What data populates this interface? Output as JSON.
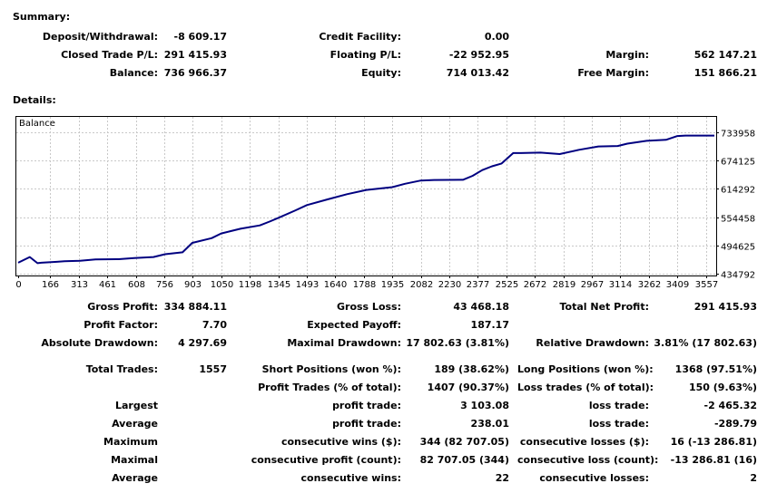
{
  "summary": {
    "heading": "Summary:",
    "deposit_withdrawal_label": "Deposit/Withdrawal:",
    "deposit_withdrawal_value": "-8 609.17",
    "credit_facility_label": "Credit Facility:",
    "credit_facility_value": "0.00",
    "closed_trade_label": "Closed Trade P/L:",
    "closed_trade_value": "291 415.93",
    "floating_label": "Floating P/L:",
    "floating_value": "-22 952.95",
    "margin_label": "Margin:",
    "margin_value": "562 147.21",
    "balance_label": "Balance:",
    "balance_value": "736 966.37",
    "equity_label": "Equity:",
    "equity_value": "714 013.42",
    "free_margin_label": "Free Margin:",
    "free_margin_value": "151 866.21"
  },
  "details": {
    "heading": "Details:"
  },
  "chart_data": {
    "type": "line",
    "title": "Balance",
    "xlabel": "",
    "ylabel": "",
    "x_ticks": [
      "0",
      "166",
      "313",
      "461",
      "608",
      "756",
      "903",
      "1050",
      "1198",
      "1345",
      "1493",
      "1640",
      "1788",
      "1935",
      "2082",
      "2230",
      "2377",
      "2525",
      "2672",
      "2819",
      "2967",
      "3114",
      "3262",
      "3409",
      "3557"
    ],
    "y_ticks": [
      "733958",
      "674125",
      "614292",
      "554458",
      "494625",
      "434792"
    ],
    "xlim": [
      0,
      3600
    ],
    "ylim": [
      434792,
      733958
    ],
    "grid": true,
    "color": "#000080",
    "series": [
      {
        "name": "",
        "x": [
          0,
          60,
          100,
          120,
          200,
          240,
          320,
          400,
          520,
          600,
          700,
          760,
          850,
          900,
          1000,
          1050,
          1150,
          1250,
          1300,
          1345,
          1430,
          1493,
          1600,
          1700,
          1800,
          1935,
          2000,
          2082,
          2150,
          2300,
          2350,
          2400,
          2450,
          2500,
          2560,
          2600,
          2700,
          2800,
          2900,
          3000,
          3100,
          3150,
          3250,
          3350,
          3409,
          3450,
          3600
        ],
        "y": [
          458000,
          470000,
          457000,
          458000,
          460000,
          461000,
          462000,
          465000,
          465500,
          468000,
          470000,
          476000,
          480000,
          500000,
          510000,
          520000,
          530000,
          537000,
          545000,
          553000,
          568000,
          580000,
          592000,
          603000,
          612000,
          618000,
          625000,
          632000,
          633000,
          633500,
          642000,
          654000,
          662000,
          668000,
          690000,
          690000,
          691000,
          688000,
          697000,
          704000,
          705000,
          710000,
          716000,
          718000,
          726000,
          727000,
          727000
        ]
      }
    ]
  },
  "stats": {
    "gross_profit_label": "Gross Profit:",
    "gross_profit_value": "334 884.11",
    "gross_loss_label": "Gross Loss:",
    "gross_loss_value": "43 468.18",
    "total_net_profit_label": "Total Net Profit:",
    "total_net_profit_value": "291 415.93",
    "profit_factor_label": "Profit Factor:",
    "profit_factor_value": "7.70",
    "expected_payoff_label": "Expected Payoff:",
    "expected_payoff_value": "187.17",
    "absolute_drawdown_label": "Absolute Drawdown:",
    "absolute_drawdown_value": "4 297.69",
    "maximal_drawdown_label": "Maximal Drawdown:",
    "maximal_drawdown_value": "17 802.63 (3.81%)",
    "relative_drawdown_label": "Relative Drawdown:",
    "relative_drawdown_value": "3.81% (17 802.63)",
    "total_trades_label": "Total Trades:",
    "total_trades_value": "1557",
    "short_positions_label": "Short Positions (won %):",
    "short_positions_value": "189 (38.62%)",
    "long_positions_label": "Long Positions (won %):",
    "long_positions_value": "1368 (97.51%)",
    "profit_trades_label": "Profit Trades (% of total):",
    "profit_trades_value": "1407 (90.37%)",
    "loss_trades_label": "Loss trades (% of total):",
    "loss_trades_value": "150 (9.63%)",
    "largest_label": "Largest",
    "largest_profit_label": "profit trade:",
    "largest_profit_value": "3 103.08",
    "largest_loss_label": "loss trade:",
    "largest_loss_value": "-2 465.32",
    "average_label": "Average",
    "average_profit_label": "profit trade:",
    "average_profit_value": "238.01",
    "average_loss_label": "loss trade:",
    "average_loss_value": "-289.79",
    "maximum_label": "Maximum",
    "max_cons_wins_label": "consecutive wins ($):",
    "max_cons_wins_value": "344 (82 707.05)",
    "max_cons_losses_label": "consecutive losses ($):",
    "max_cons_losses_value": "16 (-13 286.81)",
    "maximal_label": "Maximal",
    "maximal_cons_profit_label": "consecutive profit (count):",
    "maximal_cons_profit_value": "82 707.05 (344)",
    "maximal_cons_loss_label": "consecutive loss (count):",
    "maximal_cons_loss_value": "-13 286.81 (16)",
    "average2_label": "Average",
    "avg_cons_wins_label": "consecutive wins:",
    "avg_cons_wins_value": "22",
    "avg_cons_losses_label": "consecutive losses:",
    "avg_cons_losses_value": "2"
  }
}
